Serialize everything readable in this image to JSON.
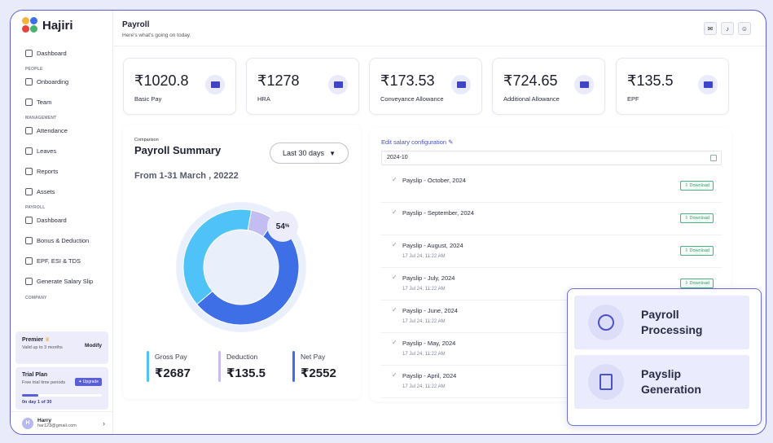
{
  "brand": {
    "name": "Hajiri"
  },
  "sidebar": {
    "dashboard": "Dashboard",
    "section_people": "PEOPLE",
    "onboarding": "Onboarding",
    "team": "Team",
    "section_management": "MANAGEMENT",
    "attendance": "Attendance",
    "leaves": "Leaves",
    "reports": "Reports",
    "assets": "Assets",
    "section_payroll": "PAYROLL",
    "payroll_dashboard": "Dashboard",
    "bonus": "Bonus & Deduction",
    "epf": "EPF, ESI & TDS",
    "salary_slip": "Generate Salary Slip",
    "section_company": "COMPANY"
  },
  "plan": {
    "premier_title": "Premier",
    "premier_sub": "Valid up to 3 months",
    "modify": "Modify",
    "trial_title": "Trial Plan",
    "trial_sub": "Free trial time periods",
    "upgrade": "Upgrade",
    "trial_day": "0n day 1 of 30",
    "trial_progress": 0.2
  },
  "user": {
    "initial": "H",
    "name": "Harry",
    "email": "har123@gmail.com"
  },
  "header": {
    "title": "Payroll",
    "subtitle": "Here's what's going on today."
  },
  "cards": [
    {
      "value": "₹1020.8",
      "label": "Basic Pay"
    },
    {
      "value": "₹1278",
      "label": "HRA"
    },
    {
      "value": "₹173.53",
      "label": "Conveyance Allowance"
    },
    {
      "value": "₹724.65",
      "label": "Additional Allowance"
    },
    {
      "value": "₹135.5",
      "label": "EPF"
    }
  ],
  "summary": {
    "kicker": "Comparison",
    "title": "Payroll Summary",
    "dropdown": "Last 30 days",
    "range": "From 1-31 March , 20222",
    "percent": "54",
    "percent_unit": "%",
    "stats": [
      {
        "label": "Gross Pay",
        "value": "₹2687",
        "color": "#4fc3f7"
      },
      {
        "label": "Deduction",
        "value": "₹135.5",
        "color": "#c3bdf2"
      },
      {
        "label": "Net Pay",
        "value": "₹2552",
        "color": "#3f6fe6"
      }
    ]
  },
  "chart_data": {
    "type": "pie",
    "donut": true,
    "series": [
      {
        "value": 54,
        "color": "#3f6fe6"
      },
      {
        "value": 39,
        "color": "#4fc3f7"
      },
      {
        "value": 7,
        "color": "#c3bdf2"
      }
    ]
  },
  "payslips": {
    "edit_label": "Edit salary configuration",
    "period": "2024-10",
    "download_label": "⇩ Download",
    "items": [
      {
        "name": "Payslip - October, 2024",
        "date": ""
      },
      {
        "name": "Payslip - September, 2024",
        "date": ""
      },
      {
        "name": "Payslip - August, 2024",
        "date": "17 Jul 24, 11:22 AM"
      },
      {
        "name": "Payslip - July, 2024",
        "date": "17 Jul 24, 11:22 AM"
      },
      {
        "name": "Payslip - June, 2024",
        "date": "17 Jul 24, 11:22 AM"
      },
      {
        "name": "Payslip - May, 2024",
        "date": "17 Jul 24, 11:22 AM"
      },
      {
        "name": "Payslip - April, 2024",
        "date": "17 Jul 24, 11:22 AM"
      }
    ]
  },
  "features": [
    {
      "title": "Payroll Processing",
      "icon": "clock-icon"
    },
    {
      "title": "Payslip Generation",
      "icon": "document-icon"
    }
  ]
}
